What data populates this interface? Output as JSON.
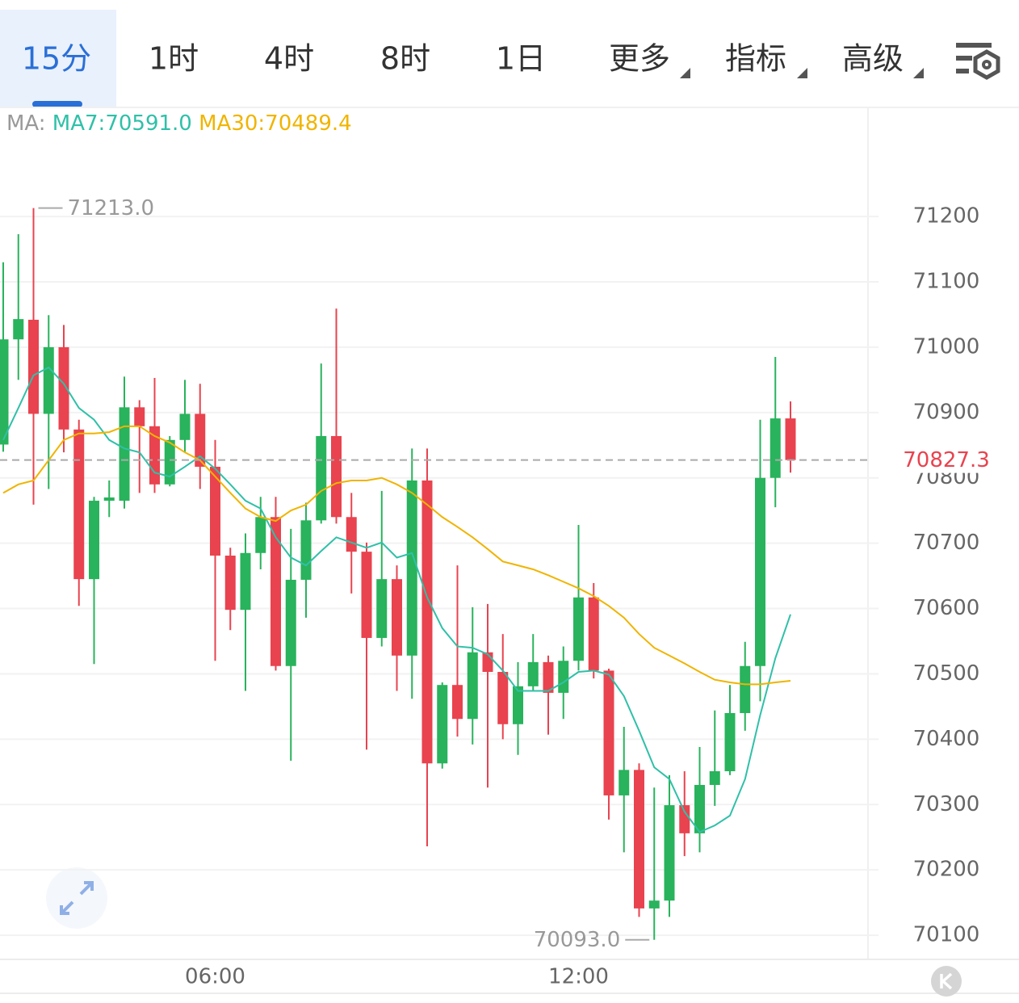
{
  "tabs": [
    "15分",
    "1时",
    "4时",
    "8时",
    "1日",
    "更多",
    "指标",
    "高级"
  ],
  "ma_label": "MA:",
  "chart_data": {
    "type": "candlestick",
    "up_color": "#28b35c",
    "down_color": "#e8434f",
    "categories": [
      null,
      null,
      null,
      null,
      null,
      null,
      null,
      null,
      null,
      null,
      null,
      null,
      null,
      null,
      "06:00",
      null,
      null,
      null,
      null,
      null,
      null,
      null,
      null,
      null,
      null,
      null,
      null,
      null,
      null,
      null,
      null,
      null,
      null,
      null,
      null,
      null,
      null,
      null,
      "12:00",
      null,
      null,
      null,
      null,
      null,
      null,
      null,
      null,
      null,
      null,
      null,
      null,
      null,
      null
    ],
    "open": [
      70851,
      71012,
      71042,
      70898,
      71000,
      70874,
      70645,
      70765,
      70765,
      70908,
      70879,
      70790,
      70858,
      70898,
      70817,
      70681,
      70598,
      70685,
      70740,
      70512,
      70644,
      70735,
      70864,
      70740,
      70687,
      70555,
      70645,
      70528,
      70796,
      70363,
      70483,
      70431,
      70533,
      70503,
      70423,
      70481,
      70518,
      70471,
      70520,
      70617,
      70505,
      70314,
      70353,
      70141,
      70153,
      70299,
      70256,
      70330,
      70351,
      70440,
      70512,
      70800,
      70891
    ],
    "high": [
      71130,
      71173,
      71213,
      71049,
      71034,
      70889,
      70771,
      70796,
      70955,
      70919,
      70953,
      70864,
      70950,
      70944,
      70858,
      70693,
      70715,
      70771,
      70771,
      70722,
      70762,
      70975,
      71059,
      70777,
      70701,
      70780,
      70666,
      70845,
      70845,
      70487,
      70666,
      70602,
      70607,
      70561,
      70518,
      70561,
      70528,
      70542,
      70728,
      70639,
      70508,
      70419,
      70363,
      70326,
      70345,
      70351,
      70388,
      70444,
      70483,
      70549,
      70889,
      70985,
      70917
    ],
    "low": [
      70840,
      70950,
      70759,
      70783,
      70839,
      70604,
      70515,
      70740,
      70753,
      70777,
      70777,
      70787,
      70839,
      70783,
      70520,
      70567,
      70474,
      70660,
      70505,
      70367,
      70586,
      70730,
      70730,
      70623,
      70384,
      70542,
      70474,
      70462,
      70236,
      70355,
      70404,
      70392,
      70326,
      70400,
      70376,
      70474,
      70407,
      70431,
      70505,
      70493,
      70277,
      70227,
      70128,
      70093,
      70128,
      70221,
      70227,
      70298,
      70345,
      70413,
      70458,
      70755,
      70808
    ],
    "close": [
      71012,
      71043,
      70898,
      71000,
      70874,
      70645,
      70765,
      70770,
      70908,
      70879,
      70790,
      70858,
      70898,
      70817,
      70681,
      70598,
      70685,
      70740,
      70512,
      70644,
      70735,
      70864,
      70740,
      70687,
      70555,
      70645,
      70528,
      70796,
      70363,
      70483,
      70431,
      70533,
      70503,
      70423,
      70481,
      70518,
      70471,
      70520,
      70617,
      70505,
      70314,
      70353,
      70141,
      70153,
      70299,
      70256,
      70330,
      70351,
      70440,
      70512,
      70800,
      70891,
      70827.3
    ],
    "series": [
      {
        "name": "MA7:70591.0",
        "color": "#2fc0a8",
        "values": [
          70858,
          70907,
          70957,
          70969,
          70944,
          70907,
          70889,
          70858,
          70845,
          70839,
          70808,
          70802,
          70817,
          70833,
          70814,
          70790,
          70765,
          70753,
          70709,
          70678,
          70666,
          70688,
          70709,
          70701,
          70693,
          70701,
          70678,
          70685,
          70617,
          70570,
          70542,
          70540,
          70530,
          70505,
          70474,
          70474,
          70474,
          70487,
          70503,
          70505,
          70499,
          70466,
          70413,
          70357,
          70339,
          70289,
          70258,
          70268,
          70283,
          70339,
          70437,
          70524,
          70591.0
        ]
      },
      {
        "name": "MA30:70489.4",
        "color": "#f0b400",
        "values": [
          70777,
          70790,
          70796,
          70827,
          70858,
          70868,
          70868,
          70870,
          70879,
          70879,
          70864,
          70854,
          70839,
          70827,
          70802,
          70777,
          70753,
          70740,
          70734,
          70750,
          70759,
          70780,
          70792,
          70796,
          70796,
          70800,
          70790,
          70777,
          70759,
          70740,
          70725,
          70709,
          70691,
          70672,
          70666,
          70660,
          70651,
          70641,
          70631,
          70619,
          70604,
          70586,
          70561,
          70540,
          70528,
          70516,
          70503,
          70491,
          70487,
          70484,
          70484,
          70487,
          70489.4
        ]
      }
    ],
    "ylim": [
      70063,
      71367
    ],
    "yticks": [
      70100,
      70200,
      70300,
      70400,
      70500,
      70600,
      70700,
      70800,
      70900,
      71000,
      71100,
      71200
    ],
    "grid": true,
    "annotations": [
      {
        "value": 71213.0,
        "label": "71213.0",
        "of": "high"
      },
      {
        "value": 70093.0,
        "label": "70093.0",
        "of": "low"
      }
    ],
    "last_price": {
      "value": 70827.3,
      "label": "70827.3"
    }
  }
}
